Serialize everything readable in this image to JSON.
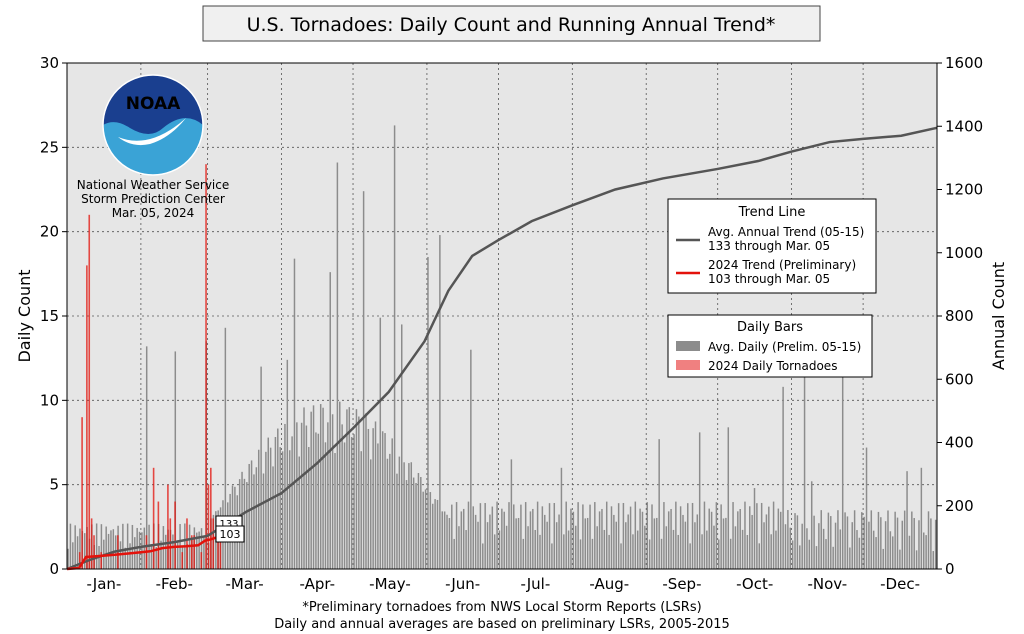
{
  "chart_data": {
    "type": "bar",
    "title": "U.S. Tornadoes: Daily Count and Running Annual Trend*",
    "ylabel_left": "Daily Count",
    "ylabel_right": "Annual Count",
    "ylim_left": [
      0,
      30
    ],
    "ylim_right": [
      0,
      1600
    ],
    "yticks_left": [
      "0",
      "5",
      "10",
      "15",
      "20",
      "25",
      "30"
    ],
    "yticks_right": [
      "0",
      "200",
      "400",
      "600",
      "800",
      "1000",
      "1200",
      "1400",
      "1600"
    ],
    "months": [
      "-Jan-",
      "-Feb-",
      "-Mar-",
      "-Apr-",
      "-May-",
      "-Jun-",
      "-Jul-",
      "-Aug-",
      "-Sep-",
      "-Oct-",
      "-Nov-",
      "-Dec-"
    ],
    "grid": true,
    "footnote_lines": [
      "*Preliminary tornadoes from NWS Local Storm Reports (LSRs)",
      "Daily and annual averages are based on preliminary LSRs, 2005-2015"
    ],
    "logo": {
      "text": "NOAA",
      "lines": [
        "National Weather Service",
        "Storm Prediction Center",
        "Mar. 05, 2024"
      ]
    },
    "legend_trend": {
      "title": "Trend Line",
      "items": [
        {
          "line1": "Avg. Annual Trend (05-15)",
          "line2": "133 through Mar. 05",
          "color": "#555555"
        },
        {
          "line1": "2024 Trend (Preliminary)",
          "line2": "103 through Mar. 05",
          "color": "#e3120b"
        }
      ]
    },
    "legend_daily": {
      "title": "Daily Bars",
      "items": [
        {
          "label": "Avg. Daily (Prelim. 05-15)",
          "color": "#8c8c8c"
        },
        {
          "label": "2024 Daily Tornadoes",
          "color": "#f08080"
        }
      ]
    },
    "markers": {
      "avg_value": "133",
      "current_value": "103",
      "day": 65
    },
    "avg_annual_trend": {
      "name": "Avg. Annual Trend (05-15)",
      "x": [
        0,
        10,
        20,
        31,
        45,
        59,
        65,
        75,
        90,
        105,
        120,
        135,
        150,
        160,
        170,
        181,
        195,
        212,
        230,
        250,
        273,
        290,
        304,
        320,
        334,
        350,
        365
      ],
      "y": [
        0,
        30,
        55,
        70,
        85,
        105,
        133,
        180,
        240,
        335,
        445,
        560,
        720,
        880,
        990,
        1040,
        1100,
        1150,
        1200,
        1235,
        1265,
        1290,
        1320,
        1350,
        1360,
        1370,
        1395
      ]
    },
    "trend_2024": {
      "name": "2024 Trend (Preliminary)",
      "x": [
        0,
        5,
        8,
        15,
        20,
        30,
        35,
        40,
        45,
        50,
        55,
        58,
        60,
        62,
        65
      ],
      "y": [
        0,
        3,
        38,
        42,
        45,
        52,
        56,
        66,
        70,
        72,
        75,
        90,
        93,
        98,
        103
      ]
    },
    "daily_2024": {
      "name": "2024 Daily Tornadoes",
      "x": [
        5,
        6,
        8,
        9,
        10,
        11,
        14,
        21,
        33,
        36,
        38,
        42,
        43,
        45,
        48,
        50,
        52,
        53,
        56,
        58,
        59,
        60,
        61,
        63,
        64
      ],
      "y": [
        1,
        9,
        18,
        21,
        3,
        2,
        1,
        2,
        2,
        6,
        4,
        5,
        3,
        4,
        1,
        3,
        2,
        2,
        1,
        24,
        5,
        6,
        3,
        3,
        2
      ]
    },
    "avg_daily_peaks": {
      "name": "Avg. Daily (Prelim. 05-15)",
      "x": [
        33,
        45,
        58,
        66,
        81,
        92,
        95,
        110,
        113,
        124,
        131,
        137,
        140,
        151,
        156,
        169,
        186,
        207,
        248,
        265,
        277,
        288,
        300,
        309,
        312,
        325,
        335,
        352,
        358
      ],
      "y": [
        13.2,
        12.9,
        13.5,
        14.3,
        12.0,
        12.4,
        18.4,
        17.6,
        24.1,
        22.4,
        14.9,
        26.3,
        14.5,
        18.5,
        19.8,
        13.0,
        6.5,
        6.0,
        7.7,
        8.1,
        8.4,
        4.8,
        10.8,
        12.1,
        5.2,
        11.5,
        7.2,
        5.8,
        6.0
      ]
    }
  }
}
